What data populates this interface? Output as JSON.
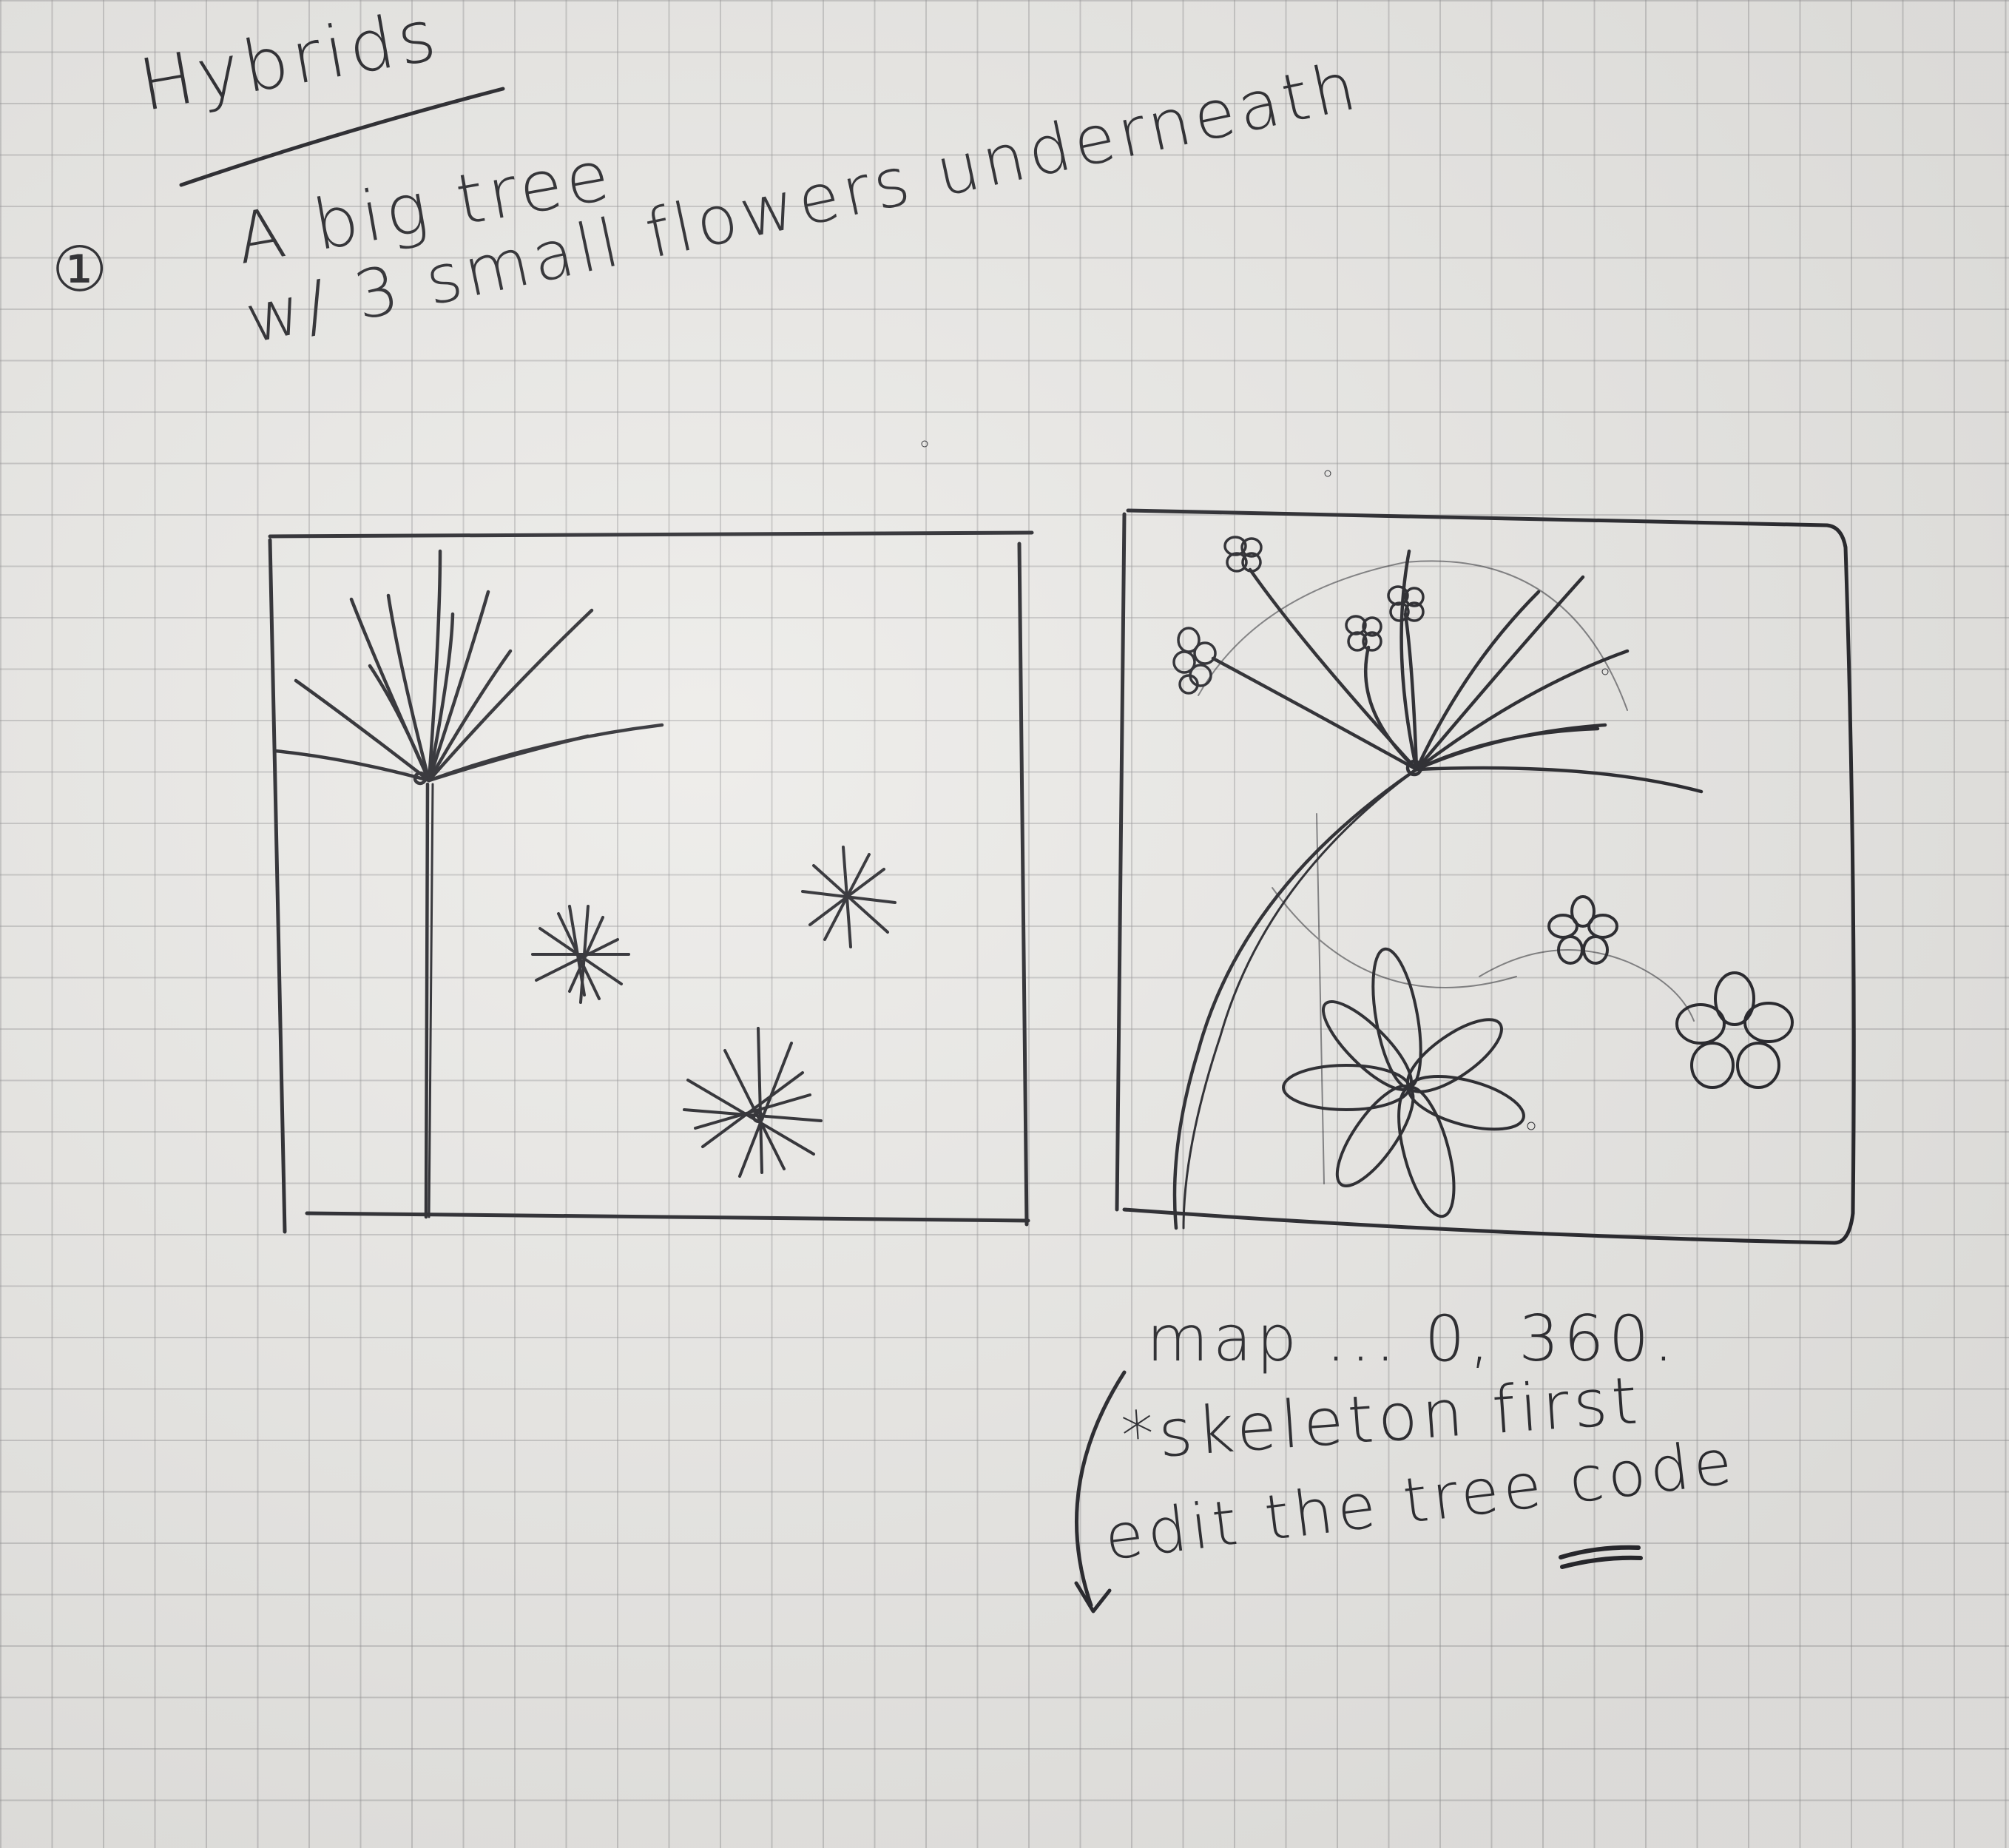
{
  "title": "Hybrids",
  "item_number": "①",
  "description": {
    "line1": "A big tree",
    "line2": "w/ 3 small flowers underneath"
  },
  "notes": {
    "line1": "map ... 0, 360.",
    "line2": "*skeleton first",
    "line3": "edit the tree code"
  },
  "colors": {
    "paper": "#ecebe8",
    "grid": "#969696",
    "ink": "#26262b"
  }
}
